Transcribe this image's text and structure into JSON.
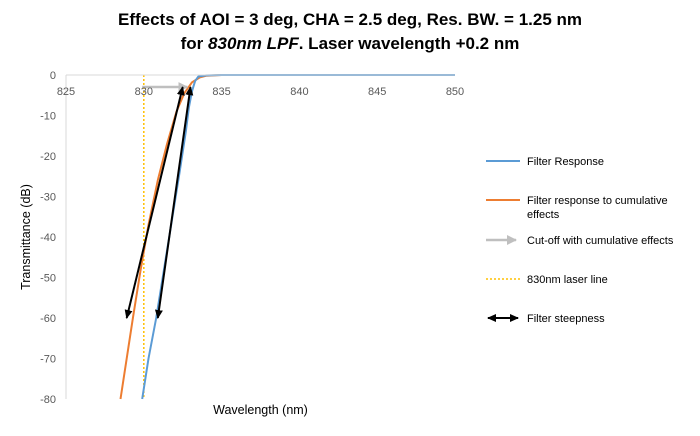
{
  "title": {
    "line1": "Effects of AOI = 3 deg, CHA = 2.5 deg, Res. BW. = 1.25 nm",
    "line2_prefix": "for ",
    "line2_italic": "830nm LPF",
    "line2_suffix": ". Laser wavelength +0.2 nm"
  },
  "colors": {
    "filter_response": "#5b9bd5",
    "cumulative": "#ed7d31",
    "cutoff_arrow": "#bfbfbf",
    "laser_line": "#ffc000",
    "steepness": "#000000"
  },
  "chart_data": {
    "type": "line",
    "title": "Effects of AOI = 3 deg, CHA = 2.5 deg, Res. BW. = 1.25 nm for 830nm LPF. Laser wavelength +0.2 nm",
    "xlabel": "Wavelength (nm)",
    "ylabel": "Transmittance (dB)",
    "xlim": [
      825,
      850
    ],
    "ylim": [
      -80,
      0
    ],
    "x_ticks": [
      "825",
      "830",
      "835",
      "840",
      "845",
      "850"
    ],
    "y_ticks": [
      "0",
      "-10",
      "-20",
      "-30",
      "-40",
      "-50",
      "-60",
      "-70",
      "-80"
    ],
    "x_axis_position": "top",
    "grid": false,
    "legend_position": "right",
    "series": [
      {
        "name": "Filter Response",
        "x": [
          829.9,
          830.3,
          830.8,
          831.3,
          831.8,
          832.3,
          832.7,
          832.9,
          833.1,
          833.3,
          833.5,
          834.0,
          835.0,
          850.0
        ],
        "y": [
          -80,
          -70,
          -60,
          -48,
          -36,
          -24,
          -14,
          -8,
          -4,
          -1.5,
          -0.4,
          -0.1,
          0,
          0
        ]
      },
      {
        "name": "Filter response to cumulative effects",
        "x": [
          828.5,
          828.9,
          829.3,
          829.8,
          830.3,
          830.9,
          831.5,
          832.1,
          832.6,
          833.1,
          833.6,
          834.0,
          835.0,
          850.0
        ],
        "y": [
          -80,
          -70,
          -60,
          -48,
          -37,
          -26,
          -17,
          -9,
          -4.5,
          -1.8,
          -0.6,
          -0.2,
          0,
          0
        ]
      }
    ],
    "laser_line": {
      "name": "830nm laser line",
      "x": 830.0
    },
    "cutoff_arrow": {
      "name": "Cut-off with cumulative effects",
      "from": [
        829.9,
        0
      ],
      "to": [
        832.8,
        0
      ]
    },
    "steepness_arrows": [
      {
        "from": [
          828.9,
          -60
        ],
        "to": [
          832.5,
          -3
        ]
      },
      {
        "from": [
          830.9,
          -60
        ],
        "to": [
          833.0,
          -3
        ]
      }
    ],
    "legend": [
      "Filter Response",
      "Filter response to cumulative effects",
      "Cut-off with cumulative effects",
      "830nm laser line",
      "Filter steepness"
    ]
  }
}
